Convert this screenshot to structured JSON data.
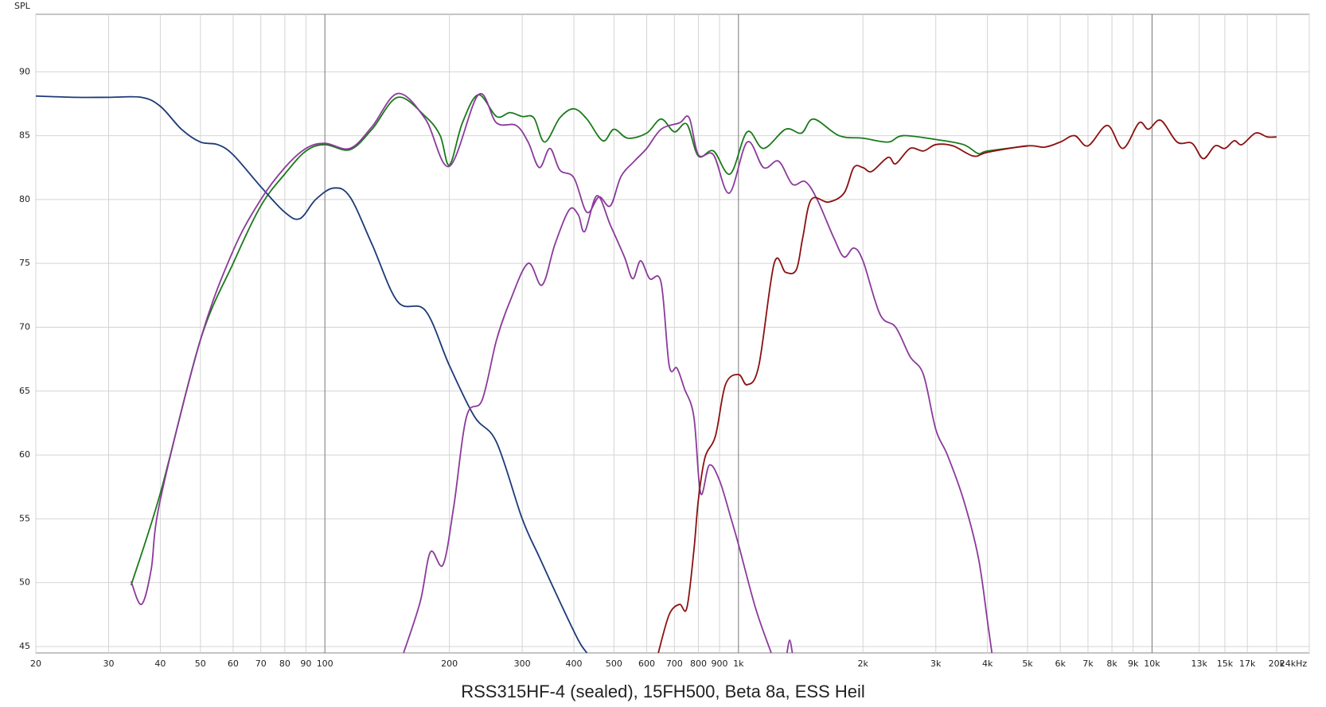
{
  "chart_data": {
    "type": "line",
    "title": "RSS315HF-4 (sealed), 15FH500, Beta 8a, ESS Heil",
    "y_label": "SPL",
    "log_x": true,
    "grid": true,
    "xlim": [
      20,
      24000
    ],
    "ylim": [
      44.5,
      94.5
    ],
    "yticks": [
      45,
      50,
      55,
      60,
      65,
      70,
      75,
      80,
      85,
      90
    ],
    "xticks": [
      20,
      30,
      40,
      50,
      60,
      70,
      80,
      90,
      100,
      200,
      300,
      400,
      500,
      600,
      700,
      800,
      900,
      {
        "value": 1000,
        "label": "1k"
      },
      {
        "value": 2000,
        "label": "2k"
      },
      {
        "value": 3000,
        "label": "3k"
      },
      {
        "value": 4000,
        "label": "4k"
      },
      {
        "value": 5000,
        "label": "5k"
      },
      {
        "value": 6000,
        "label": "6k"
      },
      {
        "value": 7000,
        "label": "7k"
      },
      {
        "value": 8000,
        "label": "8k"
      },
      {
        "value": 9000,
        "label": "9k"
      },
      {
        "value": 10000,
        "label": "10k"
      },
      {
        "value": 13000,
        "label": "13k"
      },
      {
        "value": 15000,
        "label": "15k"
      },
      {
        "value": 17000,
        "label": "17k"
      },
      {
        "value": 20000,
        "label": "20k"
      },
      {
        "value": 24000,
        "label": "24kHz"
      }
    ],
    "series": [
      {
        "color": "#1a7a1a",
        "x": [
          34,
          40,
          50,
          60,
          70,
          80,
          90,
          100,
          115,
          130,
          150,
          175,
          190,
          200,
          215,
          235,
          260,
          280,
          300,
          320,
          340,
          370,
          400,
          430,
          470,
          500,
          540,
          600,
          650,
          700,
          750,
          800,
          870,
          955,
          1050,
          1150,
          1300,
          1420,
          1520,
          1750,
          2000,
          2300,
          2500,
          3000,
          3500,
          3800,
          4000,
          5000
        ],
        "values": [
          49.8,
          57,
          69,
          75,
          79.5,
          82,
          83.8,
          84.3,
          83.9,
          85.5,
          88,
          86.5,
          85,
          82.7,
          86,
          88.2,
          86.5,
          86.8,
          86.5,
          86.4,
          84.5,
          86.4,
          87.1,
          86.3,
          84.6,
          85.5,
          84.8,
          85.2,
          86.3,
          85.3,
          85.9,
          83.4,
          83.8,
          82,
          85.3,
          84,
          85.5,
          85.2,
          86.3,
          85,
          84.8,
          84.5,
          85,
          84.7,
          84.3,
          83.6,
          83.8,
          84.2
        ]
      },
      {
        "color": "#1c3a78",
        "x": [
          20,
          25,
          30,
          36,
          40,
          45,
          50,
          55,
          60,
          70,
          80,
          87,
          95,
          105,
          115,
          130,
          150,
          175,
          200,
          230,
          260,
          300,
          330,
          370,
          410,
          430
        ],
        "values": [
          88.1,
          88,
          88,
          88,
          87.3,
          85.5,
          84.5,
          84.3,
          83.5,
          81,
          79,
          78.5,
          80,
          80.9,
          80.2,
          76.5,
          72,
          71.3,
          67,
          63,
          61,
          55,
          52,
          48.5,
          45.5,
          44.5
        ]
      },
      {
        "color": "#8b3a9b",
        "x": [
          34,
          36,
          38,
          40,
          50,
          60,
          70,
          80,
          90,
          100,
          115,
          130,
          150,
          175,
          200,
          235,
          260,
          290,
          310,
          330,
          350,
          370,
          400,
          430,
          460,
          490,
          520,
          560,
          600,
          650,
          720,
          760,
          800,
          870,
          950,
          1050,
          1150,
          1250,
          1350,
          1450,
          1550,
          1700,
          1800,
          1900,
          2000,
          2200,
          2400,
          2600,
          2800,
          3000,
          3200,
          3500,
          3800,
          4000,
          4100
        ],
        "values": [
          50.1,
          48.3,
          51,
          56.5,
          69,
          76,
          80,
          82.5,
          84,
          84.4,
          84,
          85.7,
          88.3,
          86.3,
          82.6,
          88.2,
          86,
          85.8,
          84.5,
          82.5,
          84,
          82.3,
          81.7,
          79,
          80.2,
          79.5,
          81.8,
          83,
          84,
          85.5,
          86,
          86.4,
          83.5,
          83.5,
          80.5,
          84.5,
          82.5,
          83,
          81.2,
          81.4,
          80,
          77,
          75.5,
          76.2,
          75.2,
          71,
          70,
          67.7,
          66.3,
          62,
          60,
          56.5,
          52,
          47,
          44.5
        ]
      },
      {
        "color": "#8b3a9b",
        "x": [
          155,
          170,
          180,
          193,
          205,
          220,
          240,
          260,
          280,
          310,
          335,
          360,
          390,
          410,
          425,
          455,
          490,
          530,
          555,
          580,
          610,
          650,
          680,
          710,
          740,
          780,
          810,
          850,
          900,
          960,
          1000,
          1100,
          1200,
          1300,
          1310,
          1330,
          1350
        ],
        "values": [
          44.5,
          48.5,
          52.4,
          51.4,
          56,
          63,
          64.3,
          69,
          72,
          75,
          73.3,
          76.5,
          79.2,
          78.8,
          77.5,
          80.3,
          78,
          75.5,
          73.8,
          75.2,
          73.8,
          73.5,
          67,
          66.8,
          65.2,
          63,
          57,
          59.2,
          58,
          55,
          53,
          48,
          44.5,
          null,
          44.5,
          45.5,
          44.5
        ]
      },
      {
        "color": "#8b1010",
        "x": [
          640,
          680,
          720,
          750,
          780,
          800,
          830,
          880,
          930,
          1000,
          1050,
          1120,
          1220,
          1300,
          1380,
          1430,
          1500,
          1650,
          1800,
          1900,
          2000,
          2100,
          2300,
          2400,
          2600,
          2800,
          3000,
          3300,
          3700,
          4000,
          5000,
          5500,
          6000,
          6500,
          7000,
          7800,
          8500,
          9300,
          9800,
          10500,
          11500,
          12500,
          13300,
          14200,
          15000,
          15800,
          16500,
          17800,
          19000,
          20000
        ],
        "values": [
          44.5,
          47.5,
          48.3,
          48,
          52.5,
          56.5,
          59.8,
          61.5,
          65.5,
          66.3,
          65.5,
          67,
          75,
          74.3,
          74.5,
          77,
          80,
          79.8,
          80.5,
          82.5,
          82.5,
          82.2,
          83.3,
          82.8,
          84,
          83.8,
          84.3,
          84.2,
          83.4,
          83.7,
          84.2,
          84.1,
          84.5,
          85,
          84.2,
          85.8,
          84,
          86,
          85.5,
          86.2,
          84.5,
          84.4,
          83.2,
          84.2,
          84,
          84.6,
          84.3,
          85.2,
          84.9,
          84.9
        ]
      }
    ]
  }
}
